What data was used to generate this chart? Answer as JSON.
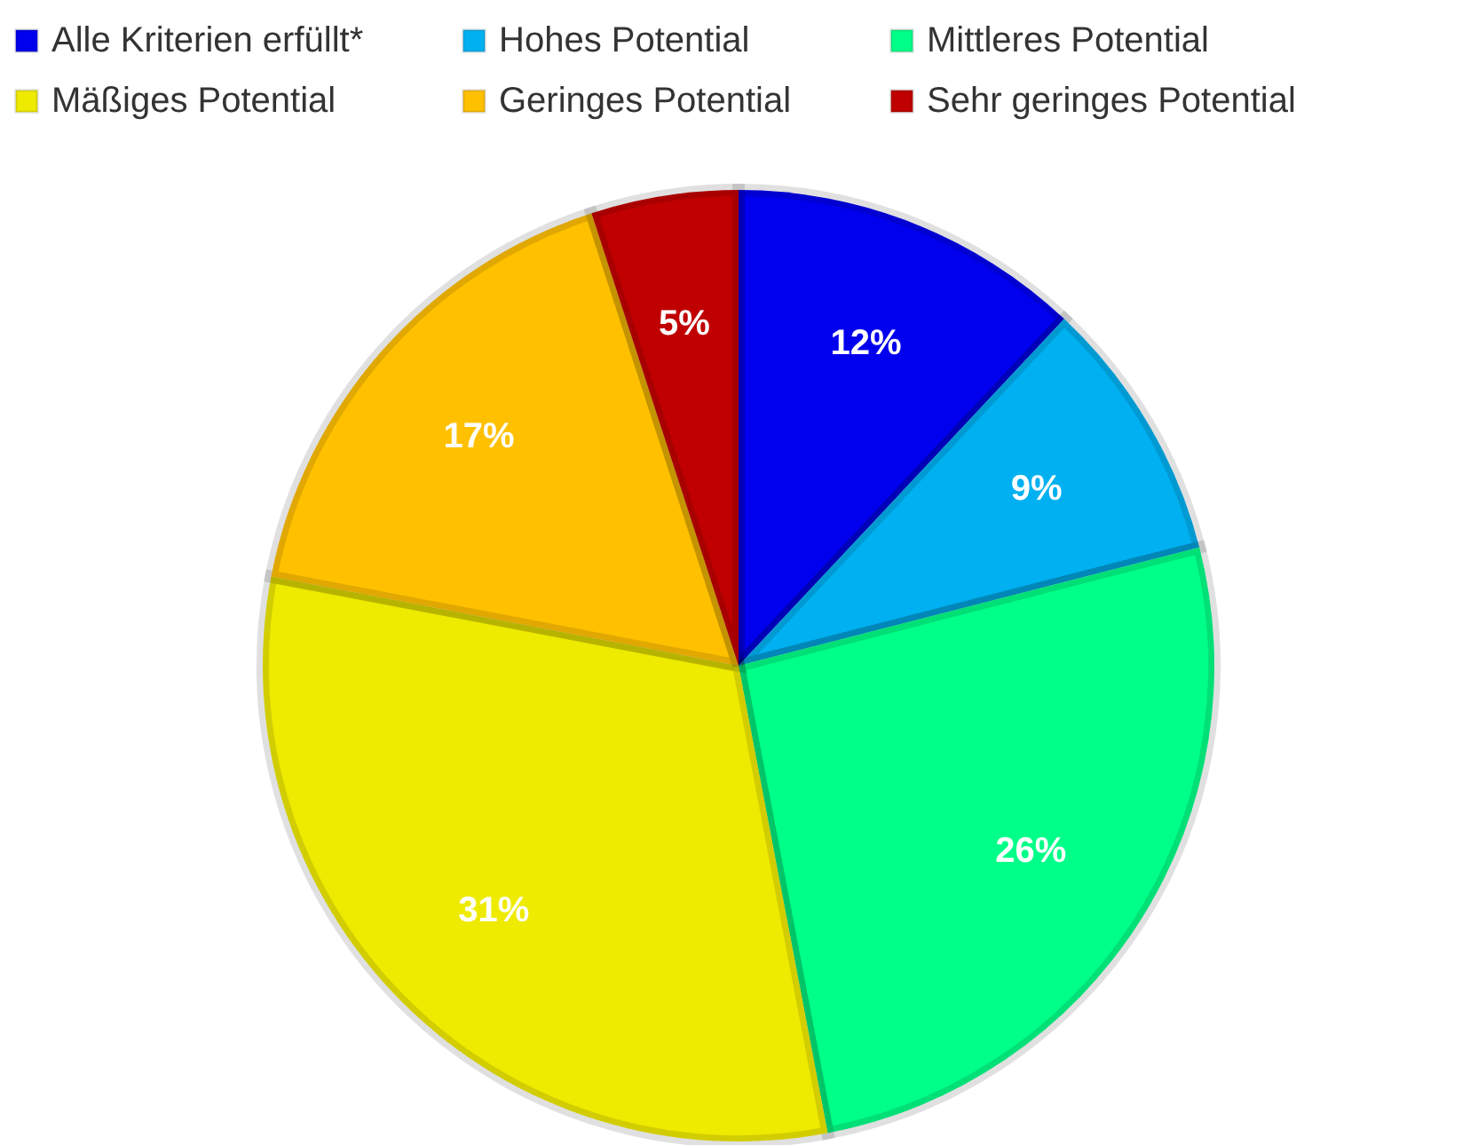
{
  "chart_data": {
    "type": "pie",
    "categories": [
      "Alle Kriterien erfüllt*",
      "Hohes Potential",
      "Mittleres Potential",
      "Mäßiges Potential",
      "Geringes Potential",
      "Sehr geringes Potential"
    ],
    "values": [
      12,
      9,
      26,
      31,
      17,
      5
    ],
    "value_labels": [
      "12%",
      "9%",
      "26%",
      "31%",
      "17%",
      "5%"
    ],
    "colors": [
      "#0000ee",
      "#00b0f0",
      "#00ff88",
      "#eeea00",
      "#ffc000",
      "#c00000"
    ],
    "legend": "top"
  }
}
